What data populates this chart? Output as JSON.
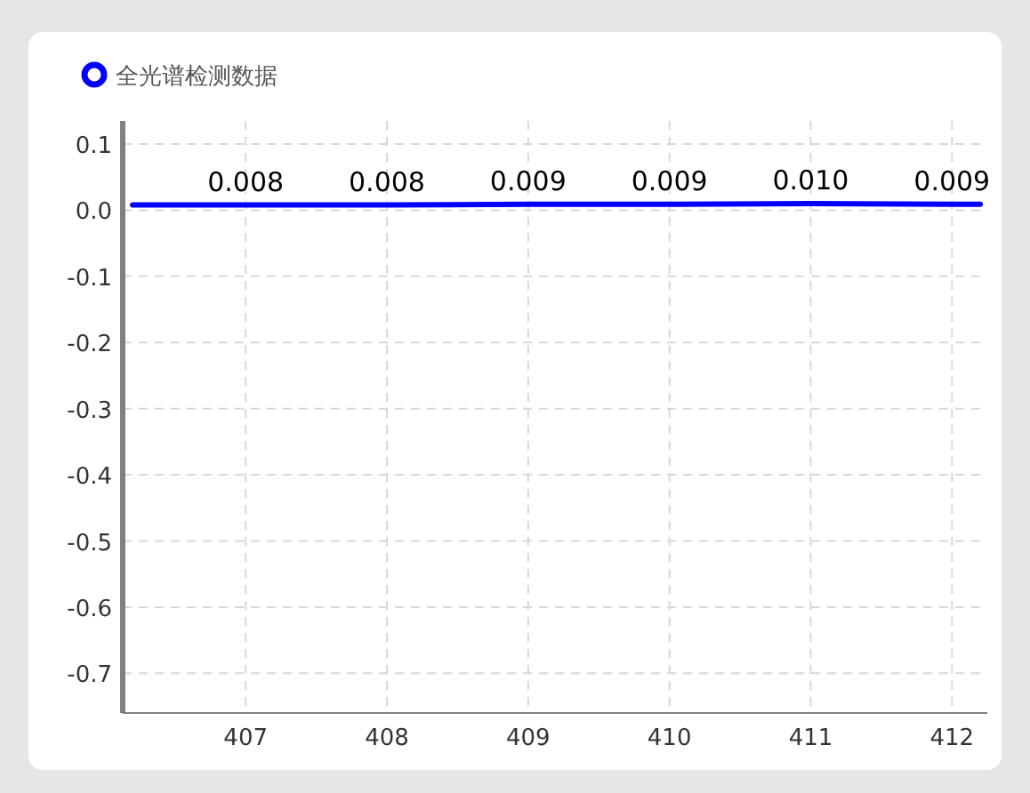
{
  "chart_data": {
    "type": "line",
    "x": [
      406.2,
      407,
      408,
      409,
      410,
      411,
      412,
      412.2
    ],
    "series": [
      {
        "name": "全光谱检测数据",
        "color": "#0000ff",
        "values": [
          0.008,
          0.008,
          0.008,
          0.009,
          0.009,
          0.01,
          0.009,
          0.009
        ],
        "value_labels": [
          null,
          "0.008",
          "0.008",
          "0.009",
          "0.009",
          "0.010",
          "0.009",
          null
        ]
      }
    ],
    "xlim": [
      406.13,
      412.25
    ],
    "xticks": [
      407,
      408,
      409,
      410,
      411,
      412
    ],
    "ylim": [
      -0.76,
      0.135
    ],
    "yticks": [
      0.1,
      {
        "value": 0,
        "label": "0.0"
      },
      -0.1,
      -0.2,
      -0.3,
      -0.4,
      -0.5,
      -0.6,
      -0.7
    ],
    "grid": true,
    "legend": "top left",
    "marker": "none",
    "line_style": "solid"
  }
}
